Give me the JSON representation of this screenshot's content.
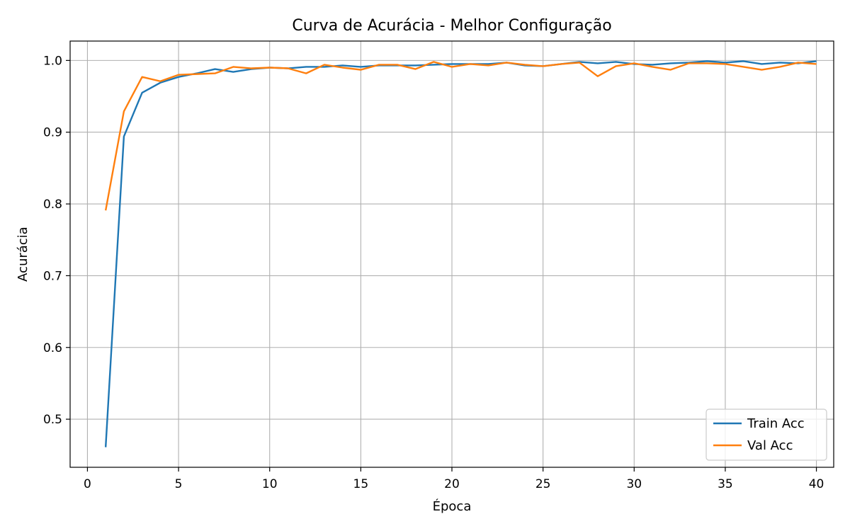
{
  "chart_data": {
    "type": "line",
    "title": "Curva de Acurácia - Melhor Configuração",
    "xlabel": "Época",
    "ylabel": "Acurácia",
    "xlim": [
      -0.95,
      40.95
    ],
    "ylim": [
      0.433,
      1.027
    ],
    "xticks": [
      0,
      5,
      10,
      15,
      20,
      25,
      30,
      35,
      40
    ],
    "yticks": [
      0.5,
      0.6,
      0.7,
      0.8,
      0.9,
      1.0
    ],
    "grid": true,
    "legend_position": "lower-right",
    "x": [
      1,
      2,
      3,
      4,
      5,
      6,
      7,
      8,
      9,
      10,
      11,
      12,
      13,
      14,
      15,
      16,
      17,
      18,
      19,
      20,
      21,
      22,
      23,
      24,
      25,
      26,
      27,
      28,
      29,
      30,
      31,
      32,
      33,
      34,
      35,
      36,
      37,
      38,
      39,
      40
    ],
    "series": [
      {
        "name": "Train Acc",
        "color": "#1f77b4",
        "values": [
          0.461,
          0.894,
          0.955,
          0.969,
          0.977,
          0.982,
          0.988,
          0.984,
          0.988,
          0.99,
          0.989,
          0.991,
          0.991,
          0.993,
          0.991,
          0.993,
          0.993,
          0.993,
          0.994,
          0.995,
          0.995,
          0.995,
          0.997,
          0.993,
          0.992,
          0.995,
          0.998,
          0.996,
          0.998,
          0.995,
          0.994,
          0.996,
          0.997,
          0.999,
          0.997,
          0.999,
          0.995,
          0.997,
          0.996,
          0.999
        ]
      },
      {
        "name": "Val Acc",
        "color": "#ff7f0e",
        "values": [
          0.791,
          0.929,
          0.977,
          0.971,
          0.98,
          0.981,
          0.982,
          0.991,
          0.989,
          0.99,
          0.989,
          0.982,
          0.994,
          0.99,
          0.987,
          0.994,
          0.994,
          0.988,
          0.998,
          0.991,
          0.995,
          0.993,
          0.997,
          0.994,
          0.992,
          0.995,
          0.997,
          0.978,
          0.992,
          0.996,
          0.991,
          0.987,
          0.996,
          0.996,
          0.995,
          0.991,
          0.987,
          0.991,
          0.997,
          0.995
        ]
      }
    ]
  }
}
